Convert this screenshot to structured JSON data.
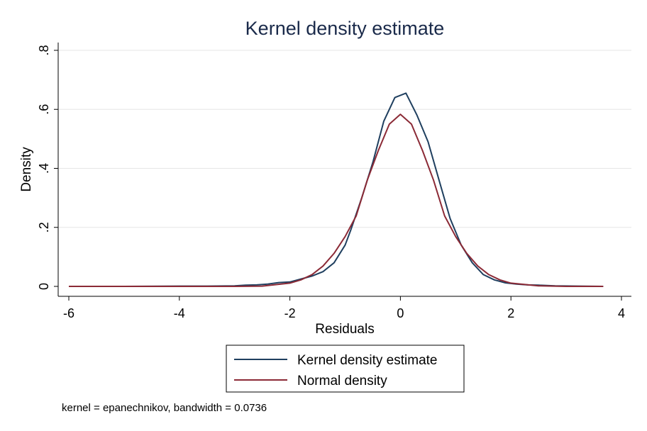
{
  "chart_data": {
    "type": "line",
    "title": "Kernel density estimate",
    "xlabel": "Residuals",
    "ylabel": "Density",
    "xlim": [
      -6,
      4
    ],
    "ylim": [
      0,
      0.8
    ],
    "x_ticks": [
      "-6",
      "-4",
      "-2",
      "0",
      "2",
      "4"
    ],
    "y_ticks": [
      "0",
      ".2",
      ".4",
      ".6",
      ".8"
    ],
    "grid": true,
    "legend_position": "bottom",
    "note": "kernel = epanechnikov, bandwidth = 0.0736",
    "series": [
      {
        "name": "Kernel density estimate",
        "color": "#1f3f5f",
        "x": [
          -6.0,
          -5.0,
          -4.0,
          -3.5,
          -3.0,
          -2.8,
          -2.6,
          -2.4,
          -2.2,
          -2.0,
          -1.8,
          -1.6,
          -1.4,
          -1.2,
          -1.0,
          -0.9,
          -0.7,
          -0.5,
          -0.3,
          -0.1,
          0.1,
          0.3,
          0.5,
          0.7,
          0.9,
          1.1,
          1.3,
          1.5,
          1.7,
          1.9,
          2.1,
          2.3,
          2.5,
          2.8,
          3.2,
          3.67
        ],
        "y": [
          0.0,
          0.0,
          0.001,
          0.001,
          0.002,
          0.004,
          0.005,
          0.008,
          0.013,
          0.015,
          0.025,
          0.035,
          0.05,
          0.08,
          0.14,
          0.19,
          0.3,
          0.42,
          0.56,
          0.64,
          0.655,
          0.58,
          0.49,
          0.36,
          0.23,
          0.14,
          0.08,
          0.04,
          0.022,
          0.012,
          0.008,
          0.005,
          0.004,
          0.002,
          0.001,
          0.0
        ]
      },
      {
        "name": "Normal density",
        "color": "#8b2a36",
        "x": [
          -6.0,
          -5.0,
          -4.0,
          -3.5,
          -3.0,
          -2.5,
          -2.0,
          -1.8,
          -1.6,
          -1.4,
          -1.2,
          -1.0,
          -0.8,
          -0.6,
          -0.4,
          -0.2,
          0.0,
          0.2,
          0.4,
          0.6,
          0.8,
          1.0,
          1.2,
          1.4,
          1.6,
          1.8,
          2.0,
          2.5,
          3.0,
          3.67
        ],
        "y": [
          0.0,
          0.0,
          0.0,
          0.0,
          0.0,
          0.001,
          0.011,
          0.022,
          0.04,
          0.069,
          0.112,
          0.169,
          0.239,
          0.36,
          0.46,
          0.55,
          0.583,
          0.55,
          0.46,
          0.36,
          0.239,
          0.169,
          0.112,
          0.069,
          0.04,
          0.022,
          0.011,
          0.002,
          0.0,
          0.0
        ]
      }
    ]
  }
}
